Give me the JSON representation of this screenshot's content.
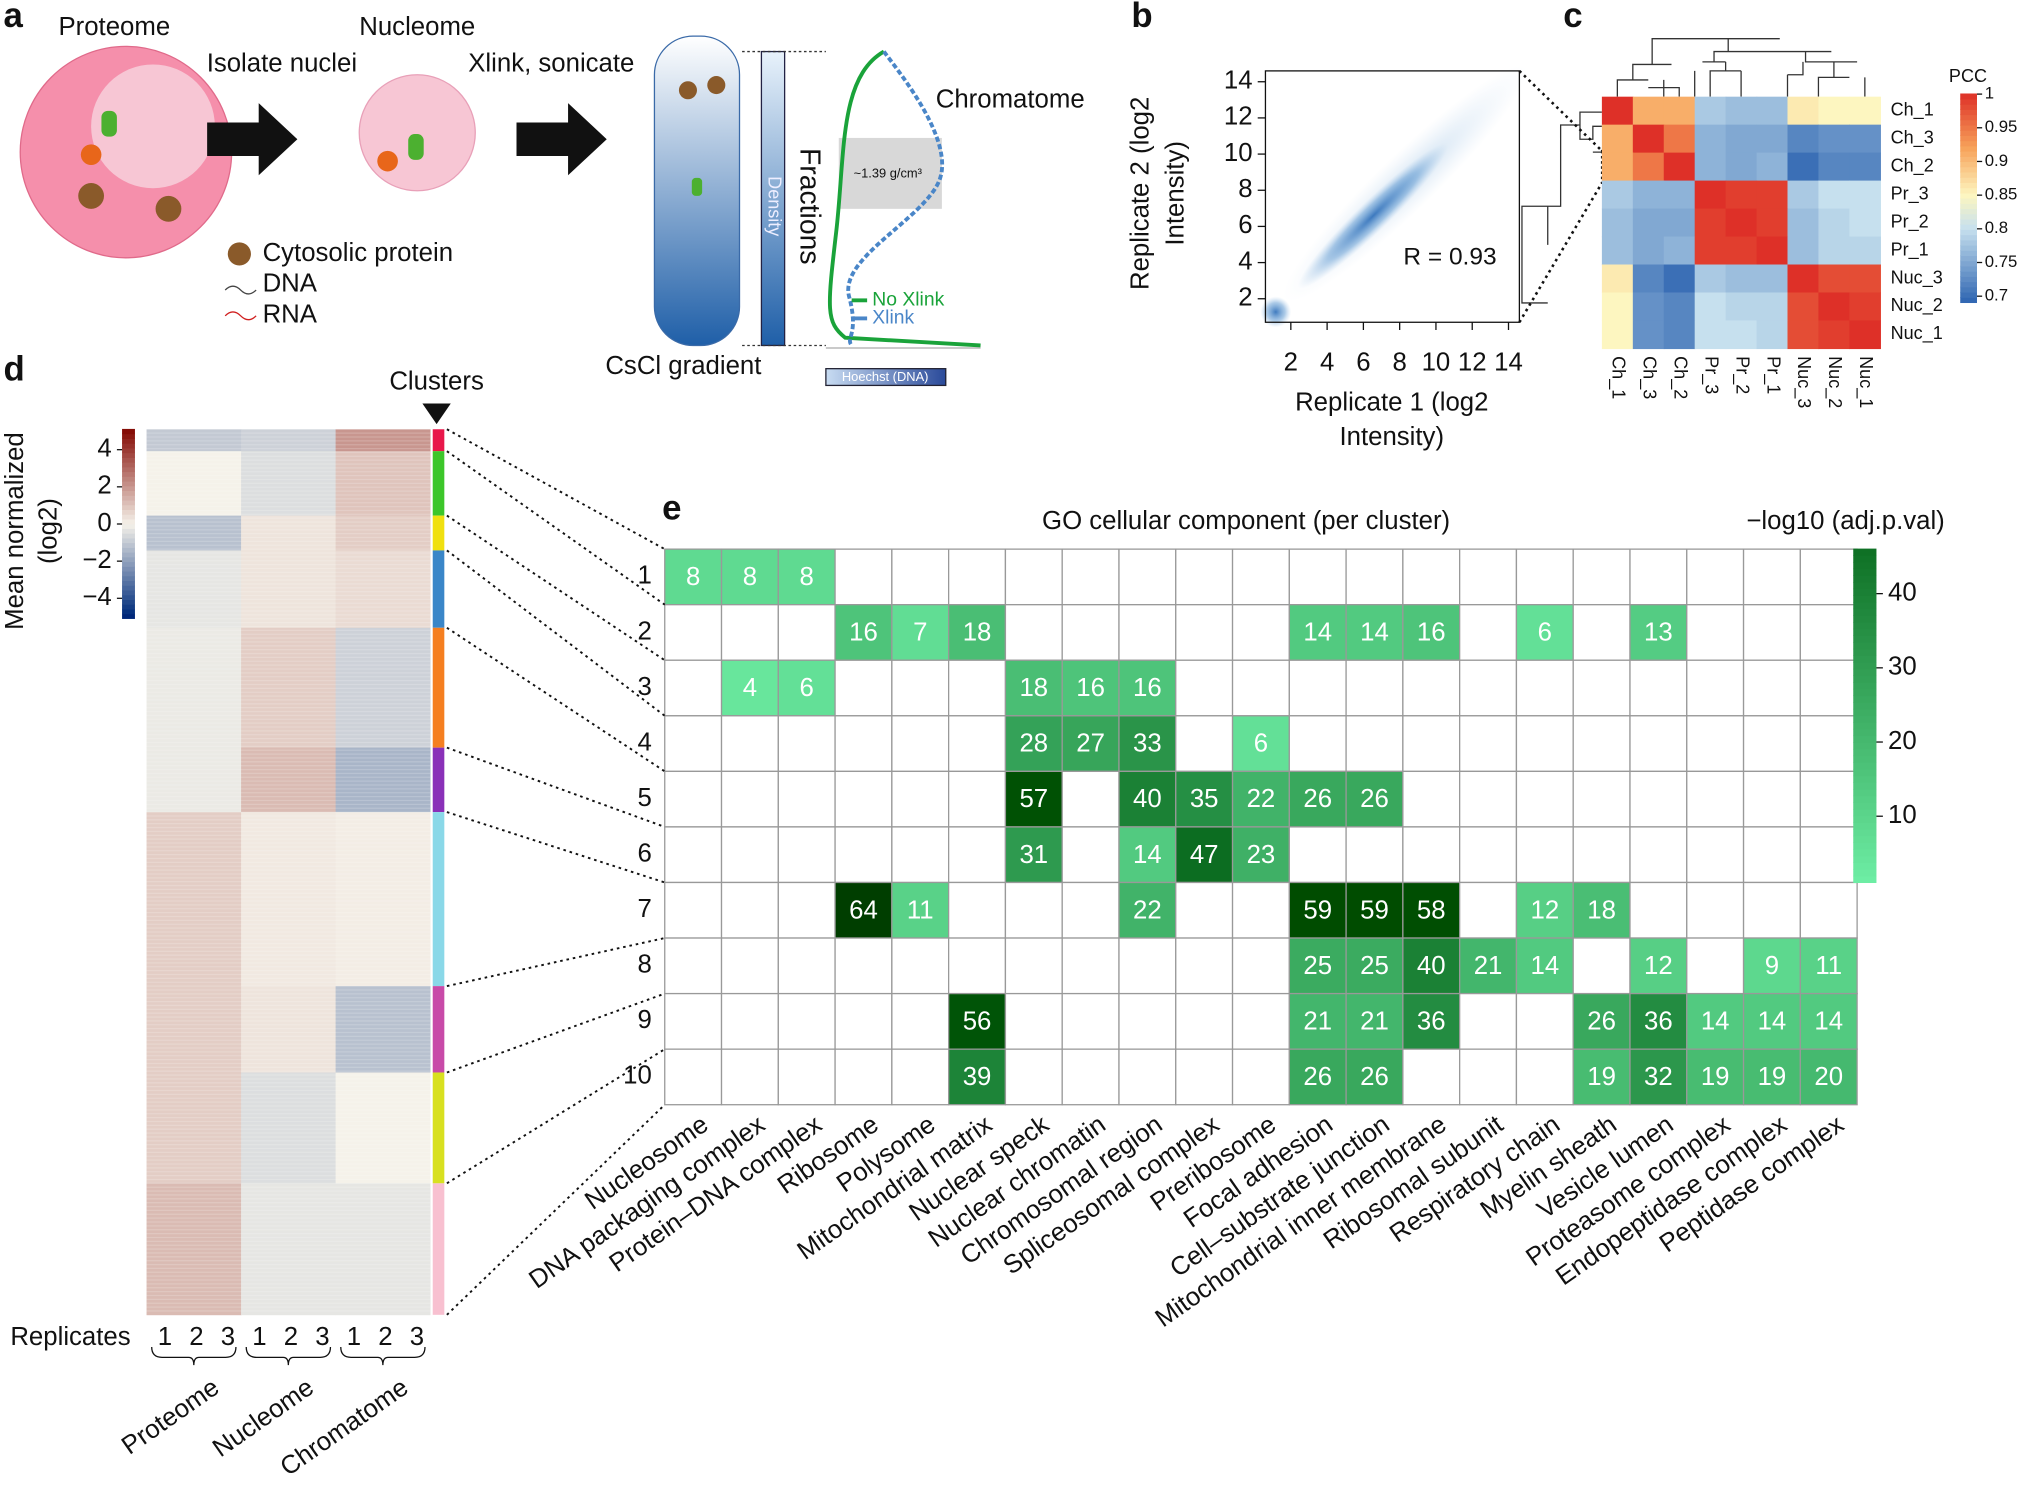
{
  "panel_a": {
    "label": "a",
    "proteome": "Proteome",
    "nucleome": "Nucleome",
    "step_1": "Isolate nuclei",
    "step_2": "Xlink, sonicate",
    "chromatome": "Chromatome",
    "legend": [
      "Cytosolic protein",
      "DNA",
      "RNA"
    ],
    "density": "Density",
    "fractions": "Fractions",
    "buoyant_density": "~1.39 g/cm³",
    "profile_legend": [
      {
        "name": "No Xlink",
        "color": "#1aa33a"
      },
      {
        "name": "Xlink",
        "color": "#4a86c8"
      }
    ],
    "gradient": "CsCl gradient",
    "detector": "Hoechst (DNA)"
  },
  "panel_b": {
    "label": "b",
    "type": "density",
    "xlabel": [
      "Replicate 1 (log2",
      "Intensity)"
    ],
    "ylabel": [
      "Replicate 2 (log2",
      "Intensity)"
    ],
    "annotation": "R =  0.93",
    "xlim": [
      0.6,
      14.6
    ],
    "ylim": [
      0.7,
      14.6
    ],
    "xticks": [
      2,
      4,
      6,
      8,
      10,
      12,
      14
    ],
    "yticks": [
      2,
      4,
      6,
      8,
      10,
      12,
      14
    ]
  },
  "panel_c": {
    "label": "c",
    "type": "heatmap",
    "rows": [
      "Ch_1",
      "Ch_3",
      "Ch_2",
      "Pr_3",
      "Pr_2",
      "Pr_1",
      "Nuc_3",
      "Nuc_2",
      "Nuc_1"
    ],
    "columns": [
      "Ch_1",
      "Ch_3",
      "Ch_2",
      "Pr_3",
      "Pr_2",
      "Pr_1",
      "Nuc_3",
      "Nuc_2",
      "Nuc_1"
    ],
    "values": [
      [
        1,
        0.91,
        0.91,
        0.78,
        0.77,
        0.77,
        0.86,
        0.85,
        0.85
      ],
      [
        0.91,
        1,
        0.95,
        0.76,
        0.75,
        0.75,
        0.72,
        0.73,
        0.73
      ],
      [
        0.91,
        0.95,
        1,
        0.76,
        0.75,
        0.76,
        0.7,
        0.72,
        0.72
      ],
      [
        0.78,
        0.76,
        0.76,
        1,
        0.99,
        0.99,
        0.78,
        0.8,
        0.8
      ],
      [
        0.77,
        0.75,
        0.75,
        0.99,
        1,
        0.99,
        0.77,
        0.79,
        0.8
      ],
      [
        0.77,
        0.75,
        0.76,
        0.99,
        0.99,
        1,
        0.77,
        0.79,
        0.79
      ],
      [
        0.86,
        0.72,
        0.7,
        0.78,
        0.77,
        0.77,
        1,
        0.98,
        0.98
      ],
      [
        0.85,
        0.73,
        0.72,
        0.8,
        0.79,
        0.79,
        0.98,
        1,
        0.99
      ],
      [
        0.85,
        0.73,
        0.72,
        0.8,
        0.8,
        0.79,
        0.98,
        0.99,
        1
      ]
    ],
    "colorbar_title": "PCC",
    "clim": [
      0.69,
      1.0
    ],
    "cticks": [
      0.7,
      0.75,
      0.8,
      0.85,
      0.9,
      0.95,
      1
    ]
  },
  "panel_d": {
    "label": "d",
    "type": "heatmap",
    "clusters_label": "Clusters",
    "ylabel": [
      "Mean normalized",
      "(log2)"
    ],
    "clim": [
      -5.1,
      5.1
    ],
    "cticks": [
      {
        "value": 4,
        "label": "4"
      },
      {
        "value": 2,
        "label": "2"
      },
      {
        "value": 0,
        "label": "0"
      },
      {
        "value": -2,
        "label": "−2"
      },
      {
        "value": -4,
        "label": "−4"
      }
    ],
    "replicates_label": "Replicates",
    "replicates": [
      1,
      2,
      3
    ],
    "groups": [
      "Proteome",
      "Nucleome",
      "Chromatome"
    ],
    "clusters": [
      {
        "color": "#e8174a",
        "size": 17,
        "profile": [
          -1,
          -0.8,
          2
        ]
      },
      {
        "color": "#3cc62a",
        "size": 50,
        "profile": [
          0,
          -0.5,
          1
        ]
      },
      {
        "color": "#f0e010",
        "size": 27,
        "profile": [
          -1.2,
          0.3,
          0.8
        ]
      },
      {
        "color": "#3a86c8",
        "size": 60,
        "profile": [
          -0.3,
          0.3,
          0.5
        ]
      },
      {
        "color": "#f57f20",
        "size": 93,
        "profile": [
          -0.2,
          0.8,
          -0.8
        ]
      },
      {
        "color": "#8a30b8",
        "size": 50,
        "profile": [
          -0.2,
          1.2,
          -1.5
        ]
      },
      {
        "color": "#8ad8e8",
        "size": 135,
        "profile": [
          0.8,
          0.2,
          0.1
        ]
      },
      {
        "color": "#c84aa8",
        "size": 67,
        "profile": [
          0.8,
          0.3,
          -1.2
        ]
      },
      {
        "color": "#d8e020",
        "size": 86,
        "profile": [
          0.8,
          -0.5,
          0
        ]
      },
      {
        "color": "#f8c0d0",
        "size": 102,
        "profile": [
          1.2,
          -0.3,
          -0.3
        ]
      }
    ]
  },
  "panel_e": {
    "label": "e",
    "type": "heatmap",
    "title": "GO cellular component (per cluster)",
    "colorbar_title": "−log10 (adj.p.val)",
    "clim": [
      1,
      46
    ],
    "cticks": [
      10,
      20,
      30,
      40
    ],
    "rows": [
      1,
      2,
      3,
      4,
      5,
      6,
      7,
      8,
      9,
      10
    ],
    "columns": [
      "Nucleosome",
      "DNA packaging complex",
      "Protein–DNA complex",
      "Ribosome",
      "Polysome",
      "Mitochondrial matrix",
      "Nuclear speck",
      "Nuclear chromatin",
      "Chromosomal region",
      "Spliceosomal complex",
      "Preribosome",
      "Focal adhesion",
      "Cell–substrate junction",
      "Mitochondrial inner membrane",
      "Ribosomal subunit",
      "Respiratory chain",
      "Myelin sheath",
      "Vesicle lumen",
      "Proteasome complex",
      "Endopeptidase complex",
      "Peptidase complex"
    ],
    "values": [
      [
        8,
        8,
        8,
        null,
        null,
        null,
        null,
        null,
        null,
        null,
        null,
        null,
        null,
        null,
        null,
        null,
        null,
        null,
        null,
        null,
        null
      ],
      [
        null,
        null,
        null,
        16,
        7,
        18,
        null,
        null,
        null,
        null,
        null,
        14,
        14,
        16,
        null,
        6,
        null,
        13,
        null,
        null,
        null
      ],
      [
        null,
        4,
        6,
        null,
        null,
        null,
        18,
        16,
        16,
        null,
        null,
        null,
        null,
        null,
        null,
        null,
        null,
        null,
        null,
        null,
        null
      ],
      [
        null,
        null,
        null,
        null,
        null,
        null,
        28,
        27,
        33,
        null,
        6,
        null,
        null,
        null,
        null,
        null,
        null,
        null,
        null,
        null,
        null
      ],
      [
        null,
        null,
        null,
        null,
        null,
        null,
        57,
        null,
        40,
        35,
        22,
        26,
        26,
        null,
        null,
        null,
        null,
        null,
        null,
        null,
        null
      ],
      [
        null,
        null,
        null,
        null,
        null,
        null,
        31,
        null,
        14,
        47,
        23,
        null,
        null,
        null,
        null,
        null,
        null,
        null,
        null,
        null,
        null
      ],
      [
        null,
        null,
        null,
        64,
        11,
        null,
        null,
        null,
        22,
        null,
        null,
        59,
        59,
        58,
        null,
        12,
        18,
        null,
        null,
        null,
        null
      ],
      [
        null,
        null,
        null,
        null,
        null,
        null,
        null,
        null,
        null,
        null,
        null,
        25,
        25,
        40,
        21,
        14,
        null,
        12,
        null,
        9,
        11
      ],
      [
        null,
        null,
        null,
        null,
        null,
        56,
        null,
        null,
        null,
        null,
        null,
        21,
        21,
        36,
        null,
        null,
        26,
        36,
        14,
        14,
        14
      ],
      [
        null,
        null,
        null,
        null,
        null,
        39,
        null,
        null,
        null,
        null,
        null,
        26,
        26,
        null,
        null,
        null,
        19,
        32,
        19,
        19,
        20
      ]
    ]
  }
}
